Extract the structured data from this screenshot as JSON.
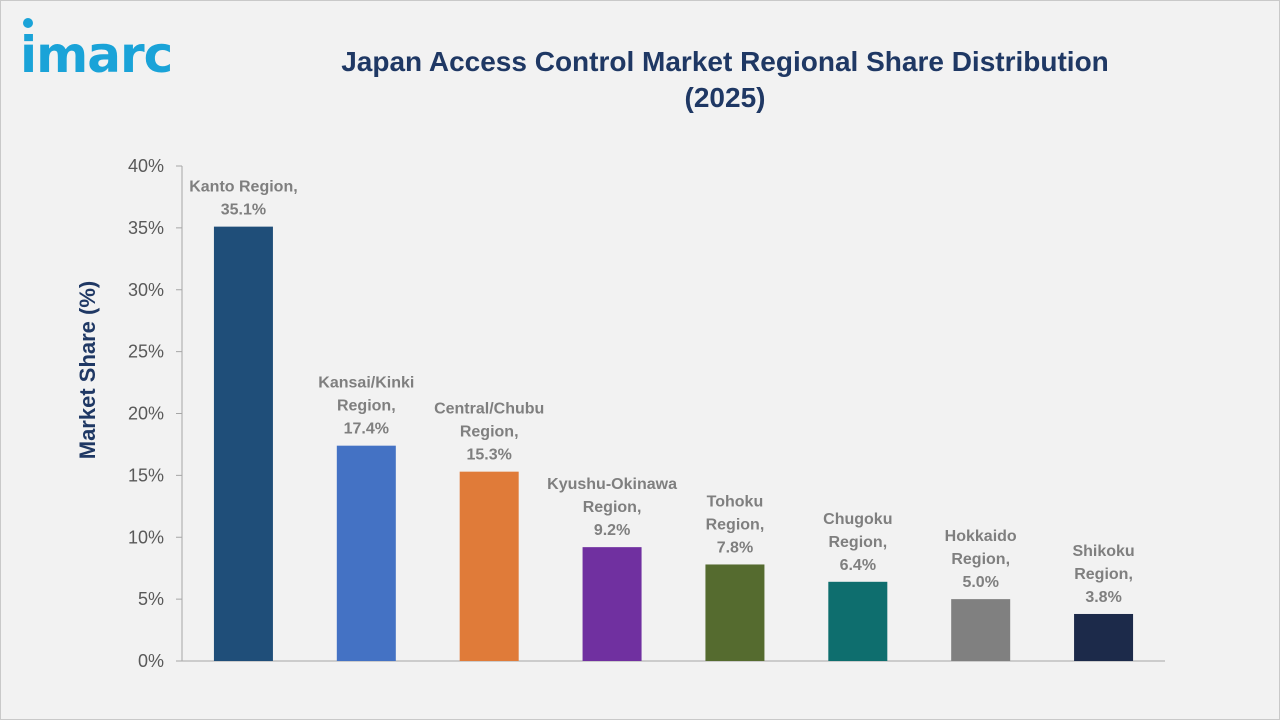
{
  "logo": {
    "text": "imarc"
  },
  "chart_data": {
    "type": "bar",
    "title": [
      "Japan Access Control Market Regional Share Distribution",
      "(2025)"
    ],
    "xlabel": "",
    "ylabel": "Market Share (%)",
    "ylim": [
      0,
      40
    ],
    "yticks": [
      {
        "value": 0,
        "label": "0%"
      },
      {
        "value": 5,
        "label": "5%"
      },
      {
        "value": 10,
        "label": "10%"
      },
      {
        "value": 15,
        "label": "15%"
      },
      {
        "value": 20,
        "label": "20%"
      },
      {
        "value": 25,
        "label": "25%"
      },
      {
        "value": 30,
        "label": "30%"
      },
      {
        "value": 35,
        "label": "35%"
      },
      {
        "value": 40,
        "label": "40%"
      }
    ],
    "grid": false,
    "legend": "none",
    "categories": [
      "Kanto Region",
      "Kansai/Kinki Region",
      "Central/Chubu Region",
      "Kyushu-Okinawa Region",
      "Tohoku Region",
      "Chugoku Region",
      "Hokkaido Region",
      "Shikoku Region"
    ],
    "values": [
      35.1,
      17.4,
      15.3,
      9.2,
      7.8,
      6.4,
      5.0,
      3.8
    ],
    "data_labels": [
      [
        "Kanto Region,",
        "35.1%"
      ],
      [
        "Kansai/Kinki",
        "Region,",
        "17.4%"
      ],
      [
        "Central/Chubu",
        "Region,",
        "15.3%"
      ],
      [
        "Kyushu-Okinawa",
        "Region,",
        "9.2%"
      ],
      [
        "Tohoku",
        "Region,",
        "7.8%"
      ],
      [
        "Chugoku",
        "Region,",
        "6.4%"
      ],
      [
        "Hokkaido",
        "Region,",
        "5.0%"
      ],
      [
        "Shikoku",
        "Region,",
        "3.8%"
      ]
    ],
    "colors": [
      "#1f4e79",
      "#4472c4",
      "#e07b39",
      "#7030a0",
      "#556b2f",
      "#0e6e6e",
      "#808080",
      "#1c2a4a"
    ]
  }
}
